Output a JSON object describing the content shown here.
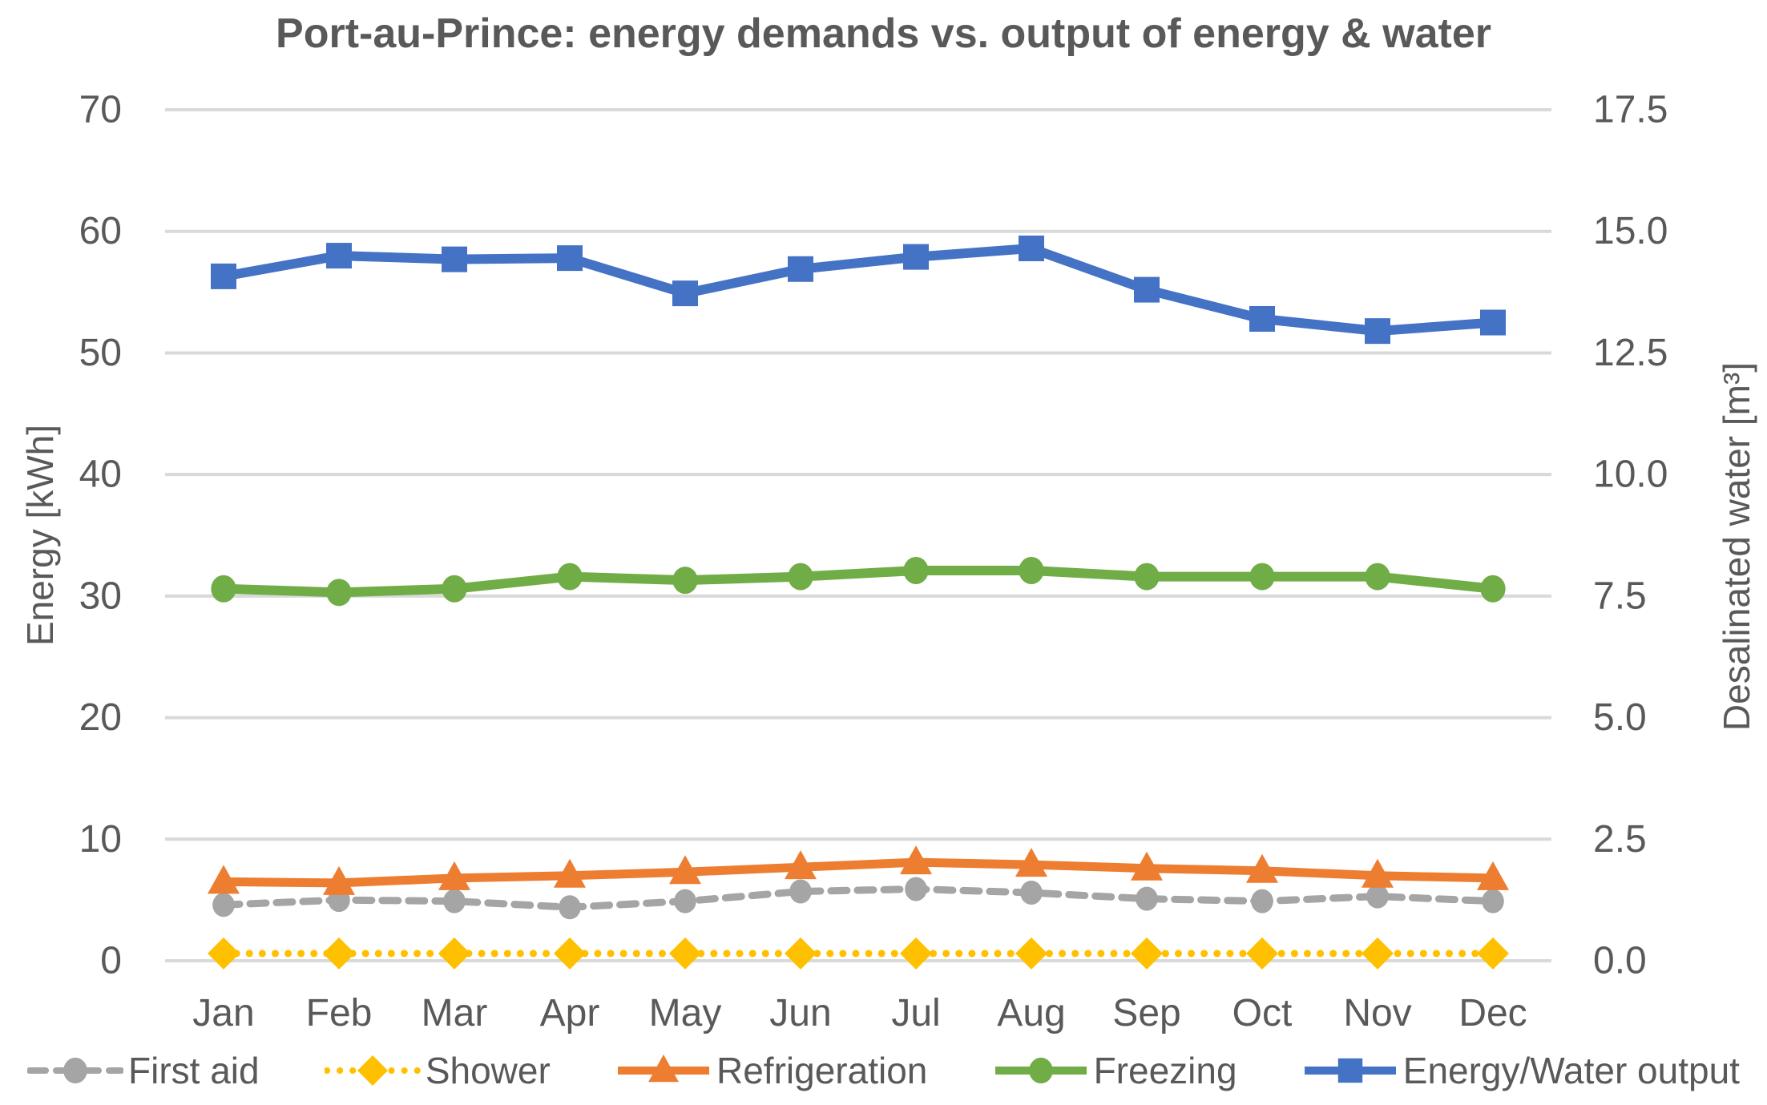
{
  "chart_data": {
    "type": "line",
    "title": "Port-au-Prince: energy demands vs. output of energy & water",
    "categories": [
      "Jan",
      "Feb",
      "Mar",
      "Apr",
      "May",
      "Jun",
      "Jul",
      "Aug",
      "Sep",
      "Oct",
      "Nov",
      "Dec"
    ],
    "left_axis": {
      "title": "Energy [kWh]",
      "ticks": [
        "70",
        "60",
        "50",
        "40",
        "30",
        "20",
        "10",
        "0"
      ],
      "range": [
        0,
        70
      ]
    },
    "right_axis": {
      "title": "Desalinated water [m³]",
      "ticks": [
        "17.5",
        "15.0",
        "12.5",
        "10.0",
        "7.5",
        "5.0",
        "2.5",
        "0.0"
      ],
      "range": [
        0,
        17.5
      ]
    },
    "grid": true,
    "legend_position": "bottom",
    "series": [
      {
        "name": "First aid",
        "color": "#A5A5A5",
        "marker": "circle",
        "line": "dashed",
        "axis": "left",
        "unit": "kWh",
        "values": [
          4.6,
          5.0,
          4.9,
          4.4,
          4.9,
          5.7,
          5.9,
          5.6,
          5.1,
          4.9,
          5.3,
          4.9
        ]
      },
      {
        "name": "Shower",
        "color": "#FFC000",
        "marker": "diamond",
        "line": "dotted",
        "axis": "left",
        "unit": "kWh",
        "values": [
          0.6,
          0.6,
          0.6,
          0.6,
          0.6,
          0.6,
          0.6,
          0.6,
          0.6,
          0.6,
          0.6,
          0.6
        ]
      },
      {
        "name": "Refrigeration",
        "color": "#ED7D31",
        "marker": "triangle",
        "line": "solid",
        "axis": "left",
        "unit": "kWh",
        "values": [
          6.5,
          6.4,
          6.8,
          7.0,
          7.3,
          7.7,
          8.1,
          7.9,
          7.6,
          7.4,
          7.0,
          6.8
        ]
      },
      {
        "name": "Freezing",
        "color": "#70AD47",
        "marker": "circle",
        "line": "solid",
        "axis": "left",
        "unit": "kWh",
        "values": [
          30.6,
          30.3,
          30.6,
          31.6,
          31.3,
          31.6,
          32.1,
          32.1,
          31.6,
          31.6,
          31.6,
          30.6
        ]
      },
      {
        "name": "Energy/Water output",
        "color": "#4472C4",
        "marker": "square",
        "line": "solid",
        "axis": "both",
        "unit": "kWh",
        "values": [
          56.3,
          58.0,
          57.7,
          57.8,
          54.9,
          56.9,
          57.9,
          58.6,
          55.2,
          52.8,
          51.8,
          52.5
        ],
        "values_right_axis_m3": [
          14.1,
          14.5,
          14.4,
          14.45,
          13.7,
          14.2,
          14.5,
          14.65,
          13.8,
          13.2,
          12.95,
          13.1
        ]
      }
    ],
    "colors": {
      "text": "#595959",
      "gridline": "#D9D9D9",
      "background": "#FFFFFF"
    }
  }
}
